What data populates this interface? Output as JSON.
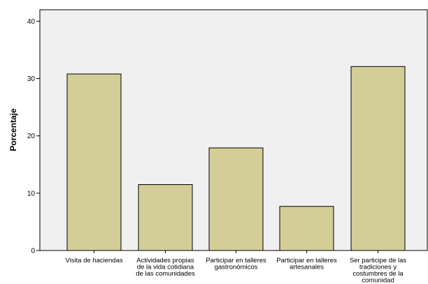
{
  "chart_data": {
    "type": "bar",
    "title": "",
    "xlabel": "",
    "ylabel": "Porcentaje",
    "ylim": [
      0,
      42
    ],
    "yticks": [
      0,
      10,
      20,
      30,
      40
    ],
    "grid": false,
    "categories": [
      [
        "Visita de haciendas"
      ],
      [
        "Actividades propias",
        "de la vida cotidiana",
        "de las comunidades"
      ],
      [
        "Participar en talleres",
        "gastronómicos"
      ],
      [
        "Participar en talleres",
        "artesanales"
      ],
      [
        "Ser participe de las",
        "tradiciones y",
        "costumbres de la",
        "comunidad"
      ]
    ],
    "values": [
      30.8,
      11.5,
      17.9,
      7.7,
      32.1
    ],
    "colors": {
      "bar_fill": "#D3CE97",
      "bar_stroke": "#000000",
      "plot_background": "#F0F0F0"
    }
  }
}
